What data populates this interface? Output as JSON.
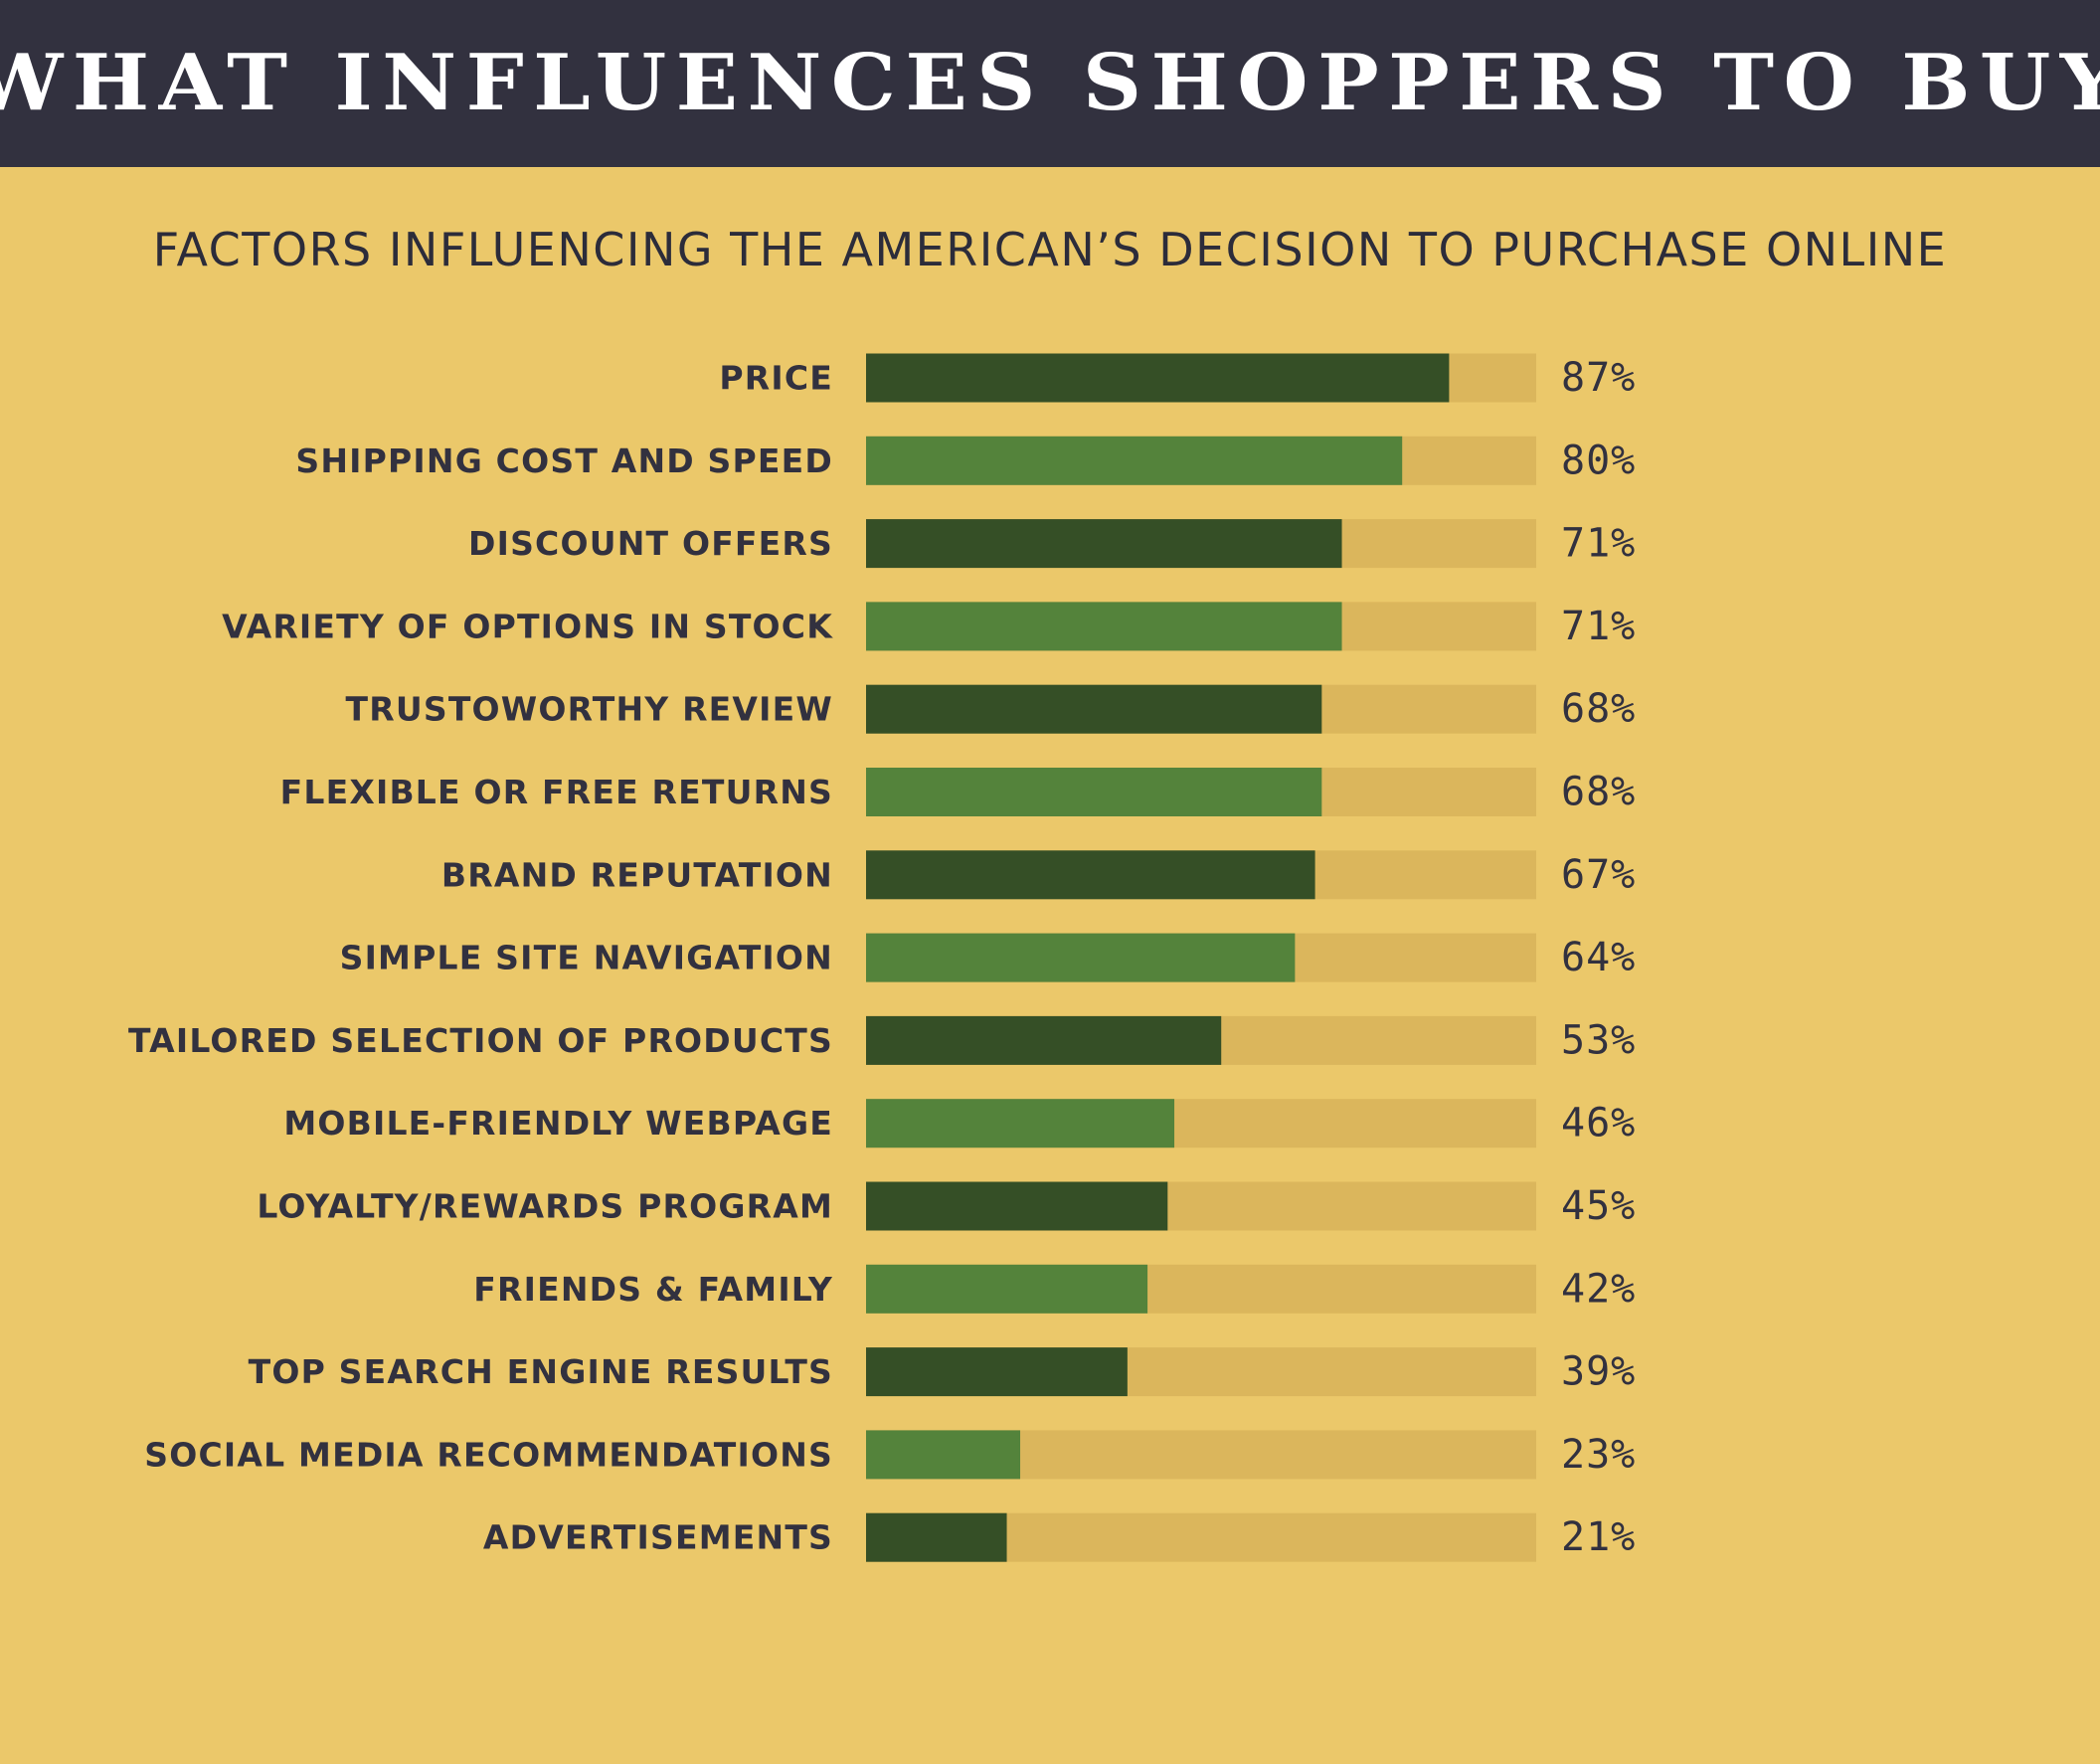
{
  "header": {
    "title": "WHAT INFLUENCES SHOPPERS TO BUY"
  },
  "colors": {
    "background": "#ebc86a",
    "header_bg": "#32313f",
    "track": "#dbb65c",
    "bar_dark": "#354f26",
    "bar_light": "#54833b",
    "text": "#32313f"
  },
  "chart_data": {
    "type": "bar",
    "orientation": "horizontal",
    "title": "FACTORS INFLUENCING THE AMERICAN’S DECISION TO PURCHASE ONLINE",
    "xlim": [
      0,
      100
    ],
    "grid": false,
    "categories": [
      "PRICE",
      "SHIPPING COST AND SPEED",
      "DISCOUNT OFFERS",
      "VARIETY OF OPTIONS IN STOCK",
      "TRUSTOWORTHY REVIEW",
      "FLEXIBLE OR FREE RETURNS",
      "BRAND REPUTATION",
      "SIMPLE SITE NAVIGATION",
      "TAILORED SELECTION OF PRODUCTS",
      "MOBILE-FRIENDLY WEBPAGE",
      "LOYALTY/REWARDS PROGRAM",
      "FRIENDS & FAMILY",
      "TOP SEARCH ENGINE RESULTS",
      "SOCIAL MEDIA RECOMMENDATIONS",
      "ADVERTISEMENTS"
    ],
    "values": [
      87,
      80,
      71,
      71,
      68,
      68,
      67,
      64,
      53,
      46,
      45,
      42,
      39,
      23,
      21
    ],
    "value_labels": [
      "87%",
      "80%",
      "71%",
      "71%",
      "68%",
      "68%",
      "67%",
      "64%",
      "53%",
      "46%",
      "45%",
      "42%",
      "39%",
      "23%",
      "21%"
    ]
  }
}
